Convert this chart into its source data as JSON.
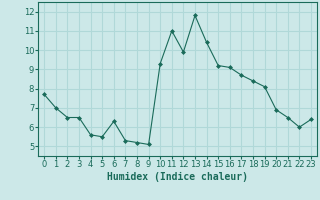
{
  "x": [
    0,
    1,
    2,
    3,
    4,
    5,
    6,
    7,
    8,
    9,
    10,
    11,
    12,
    13,
    14,
    15,
    16,
    17,
    18,
    19,
    20,
    21,
    22,
    23
  ],
  "y": [
    7.7,
    7.0,
    6.5,
    6.5,
    5.6,
    5.5,
    6.3,
    5.3,
    5.2,
    5.1,
    9.3,
    11.0,
    9.9,
    11.8,
    10.4,
    9.2,
    9.1,
    8.7,
    8.4,
    8.1,
    6.9,
    6.5,
    6.0,
    6.4
  ],
  "line_color": "#1a6b5a",
  "marker": "D",
  "marker_size": 2,
  "bg_color": "#cce8e8",
  "grid_color": "#b0d8d8",
  "xlabel": "Humidex (Indice chaleur)",
  "ylim": [
    4.5,
    12.5
  ],
  "xlim": [
    -0.5,
    23.5
  ],
  "yticks": [
    5,
    6,
    7,
    8,
    9,
    10,
    11,
    12
  ],
  "xticks": [
    0,
    1,
    2,
    3,
    4,
    5,
    6,
    7,
    8,
    9,
    10,
    11,
    12,
    13,
    14,
    15,
    16,
    17,
    18,
    19,
    20,
    21,
    22,
    23
  ],
  "tick_color": "#1a6b5a",
  "label_fontsize": 6,
  "xlabel_fontsize": 7
}
